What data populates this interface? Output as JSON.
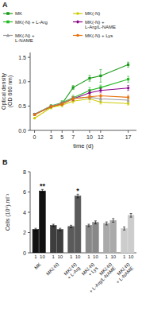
{
  "chart_data": [
    {
      "type": "line",
      "title": "A",
      "xlabel": "time (d)",
      "ylabel": "Optical density\n(OD 660 nm)",
      "x": [
        0,
        3,
        5,
        7,
        10,
        12,
        17
      ],
      "xlim": [
        -0.8,
        18.5
      ],
      "xticks": [
        0,
        3,
        5,
        7,
        10,
        12,
        17
      ],
      "ylim": [
        0.0,
        1.6
      ],
      "yticks": [
        {
          "value": 0.0,
          "label": "0.0"
        },
        0.5,
        {
          "value": 1.0,
          "label": "1.0"
        },
        1.5
      ],
      "grid": false,
      "legend": "top",
      "series": [
        {
          "name": "MK",
          "color": "#1a9c1a",
          "marker": "square",
          "values": [
            0.33,
            0.48,
            0.55,
            0.88,
            1.07,
            1.12,
            1.35
          ],
          "errors": [
            0.01,
            0.02,
            0.03,
            0.04,
            0.06,
            0.13,
            0.05
          ]
        },
        {
          "name": "MK(-N)",
          "color": "#cccc00",
          "marker": "circle",
          "values": [
            0.25,
            0.47,
            0.52,
            0.6,
            0.65,
            0.58,
            0.55
          ],
          "errors": [
            0.01,
            0.03,
            0.04,
            0.04,
            0.07,
            0.04,
            0.03
          ]
        },
        {
          "name": "MK(-N) + L-Arg",
          "color": "#22bb22",
          "marker": "square",
          "values": [
            0.33,
            0.5,
            0.57,
            0.67,
            0.82,
            0.88,
            1.05
          ],
          "errors": [
            0.01,
            0.03,
            0.04,
            0.05,
            0.06,
            0.05,
            0.06
          ]
        },
        {
          "name": "MK(-N) +\nL-Arg/L-NAME",
          "color": "#8b008b",
          "marker": "diamond",
          "values": [
            0.33,
            0.49,
            0.55,
            0.65,
            0.77,
            0.82,
            0.87
          ],
          "errors": [
            0.01,
            0.02,
            0.03,
            0.04,
            0.05,
            0.04,
            0.05
          ]
        },
        {
          "name": "MK(-N) +\nL-NAME",
          "color": "#999999",
          "marker": "triangle",
          "values": [
            0.33,
            0.5,
            0.56,
            0.66,
            0.68,
            0.65,
            0.62
          ],
          "errors": [
            0.01,
            0.02,
            0.03,
            0.03,
            0.04,
            0.05,
            0.04
          ]
        },
        {
          "name": "MK(-N) + Lys",
          "color": "#e8700a",
          "marker": "circle",
          "values": [
            0.32,
            0.49,
            0.54,
            0.65,
            0.69,
            0.71,
            0.68
          ],
          "errors": [
            0.01,
            0.02,
            0.03,
            0.04,
            0.04,
            0.04,
            0.04
          ]
        }
      ]
    },
    {
      "type": "bar",
      "title": "B",
      "ylabel": "Cells (10⁶).ml⁻¹",
      "categories": [
        "MK",
        "MK(-N)",
        "MK(-N)\n+ L-Arg",
        "MK(-N)\n+ Lys",
        "MK(-N)\n+ L-Arg/L-NAME",
        "MK(-N)\n+ L-NAME"
      ],
      "ylim": [
        0,
        8
      ],
      "yticks": [
        0,
        2,
        4,
        6,
        8
      ],
      "grid": false,
      "series": [
        {
          "name": "1",
          "values": [
            2.3,
            2.7,
            2.6,
            2.7,
            2.9,
            2.4
          ],
          "errors": [
            0.12,
            0.12,
            0.12,
            0.12,
            0.15,
            0.15
          ],
          "colors": [
            "#111111",
            "#3d3d3d",
            "#5a5a5a",
            "#888888",
            "#aaaaaa",
            "#cccccc"
          ]
        },
        {
          "name": "10",
          "values": [
            6.1,
            2.3,
            5.6,
            3.0,
            3.2,
            3.7
          ],
          "errors": [
            0.15,
            0.12,
            0.18,
            0.15,
            0.18,
            0.18
          ],
          "colors": [
            "#111111",
            "#3d3d3d",
            "#5a5a5a",
            "#888888",
            "#aaaaaa",
            "#cccccc"
          ]
        }
      ],
      "annotations": [
        {
          "text": "**",
          "series": 1,
          "index": 0
        },
        {
          "text": "*",
          "series": 1,
          "index": 2
        }
      ]
    }
  ]
}
